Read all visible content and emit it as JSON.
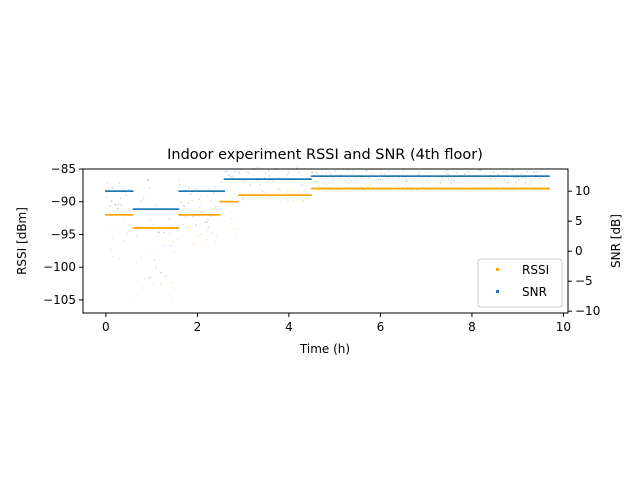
{
  "colors": {
    "rssi": "#ffa500",
    "snr": "#1f77b4",
    "axis": "#000000",
    "legend_border": "#cccccc"
  },
  "chart_data": {
    "type": "scatter",
    "title": "Indoor experiment RSSI and SNR (4th floor)",
    "xlabel": "Time (h)",
    "ylabel_left": "RSSI [dBm]",
    "ylabel_right": "SNR [dB]",
    "xlim": [
      -0.5,
      10.1
    ],
    "ylim_left": [
      -107,
      -85
    ],
    "ylim_right": [
      -10.3,
      13.7
    ],
    "x_ticks": [
      0,
      2,
      4,
      6,
      8,
      10
    ],
    "y_ticks_left": [
      -105,
      -100,
      -95,
      -90,
      -85
    ],
    "y_ticks_right": [
      -10,
      -5,
      0,
      5,
      10
    ],
    "grid": false,
    "legend_position": "lower-right",
    "series": [
      {
        "name": "RSSI",
        "axis": "left",
        "color": "#ffa500",
        "description_points": [
          {
            "x_range": [
              0.0,
              0.6
            ],
            "y_main": -92,
            "y_min": -99,
            "y_max": -90
          },
          {
            "x_range": [
              0.6,
              1.6
            ],
            "y_main": -94,
            "y_min": -106,
            "y_max": -91
          },
          {
            "x_range": [
              1.6,
              2.5
            ],
            "y_main": -92,
            "y_min": -97,
            "y_max": -89
          },
          {
            "x_range": [
              2.5,
              2.9
            ],
            "y_main": -90,
            "y_min": -98,
            "y_max": -89
          },
          {
            "x_range": [
              2.9,
              4.5
            ],
            "y_main": -89,
            "y_min": -90,
            "y_max": -88
          },
          {
            "x_range": [
              4.5,
              9.7
            ],
            "y_main": -88,
            "y_min": -88.5,
            "y_max": -87
          }
        ]
      },
      {
        "name": "SNR",
        "axis": "right",
        "color": "#1f77b4",
        "description_points": [
          {
            "x_range": [
              0.0,
              0.6
            ],
            "y_main": 10,
            "y_min": 7,
            "y_max": 12
          },
          {
            "x_range": [
              0.6,
              1.6
            ],
            "y_main": 7,
            "y_min": -5,
            "y_max": 12
          },
          {
            "x_range": [
              1.6,
              2.6
            ],
            "y_main": 10,
            "y_min": 4,
            "y_max": 12
          },
          {
            "x_range": [
              2.6,
              4.5
            ],
            "y_main": 12,
            "y_min": 11,
            "y_max": 14
          },
          {
            "x_range": [
              4.5,
              9.7
            ],
            "y_main": 12.5,
            "y_min": 11.5,
            "y_max": 13.5
          }
        ]
      }
    ]
  }
}
